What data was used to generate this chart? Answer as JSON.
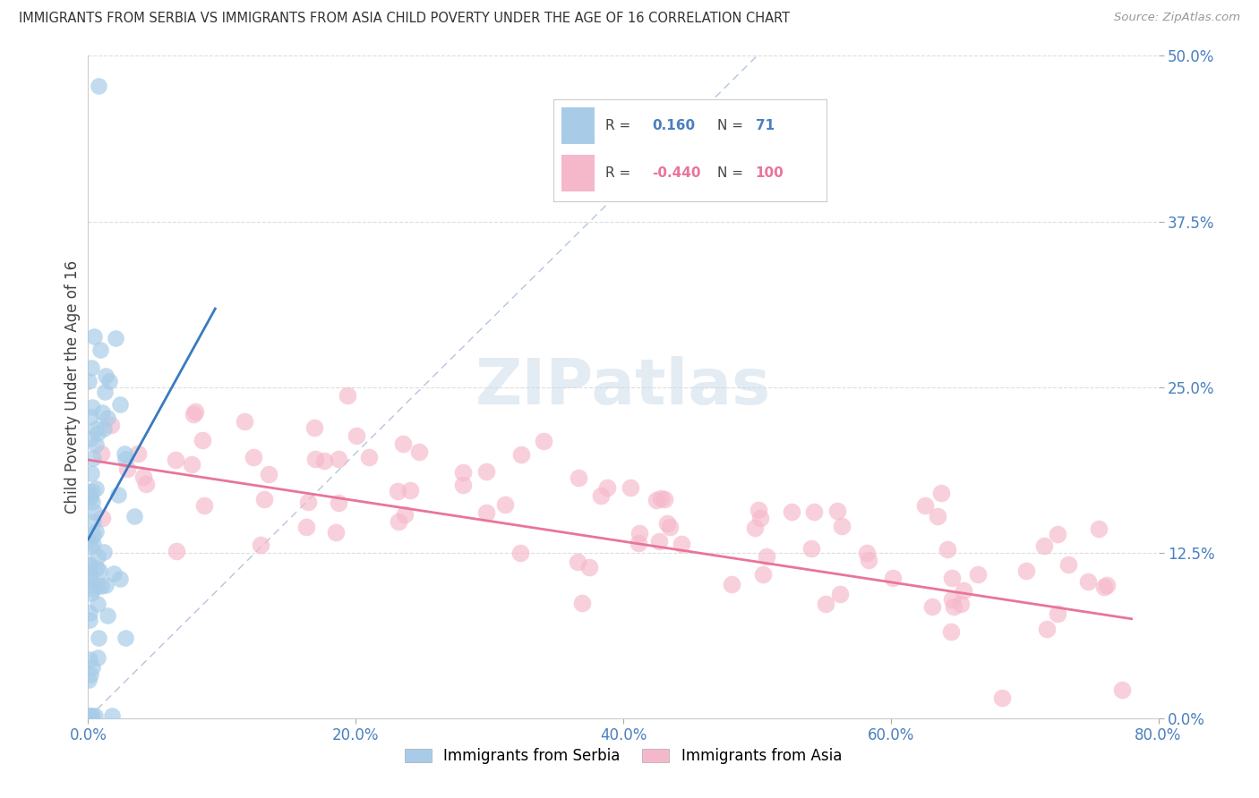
{
  "title": "IMMIGRANTS FROM SERBIA VS IMMIGRANTS FROM ASIA CHILD POVERTY UNDER THE AGE OF 16 CORRELATION CHART",
  "source": "Source: ZipAtlas.com",
  "ylabel": "Child Poverty Under the Age of 16",
  "xlim": [
    0.0,
    0.8
  ],
  "ylim": [
    0.0,
    0.5
  ],
  "serbia_R": 0.16,
  "serbia_N": 71,
  "asia_R": -0.44,
  "asia_N": 100,
  "serbia_color": "#a8cce8",
  "asia_color": "#f5b8ca",
  "trendline_serbia_color": "#3a7abf",
  "trendline_asia_color": "#e8759a",
  "dashed_line_color": "#a0b8d8",
  "background_color": "#ffffff",
  "grid_color": "#dddddd",
  "serbia_seed": 42,
  "asia_seed": 99
}
